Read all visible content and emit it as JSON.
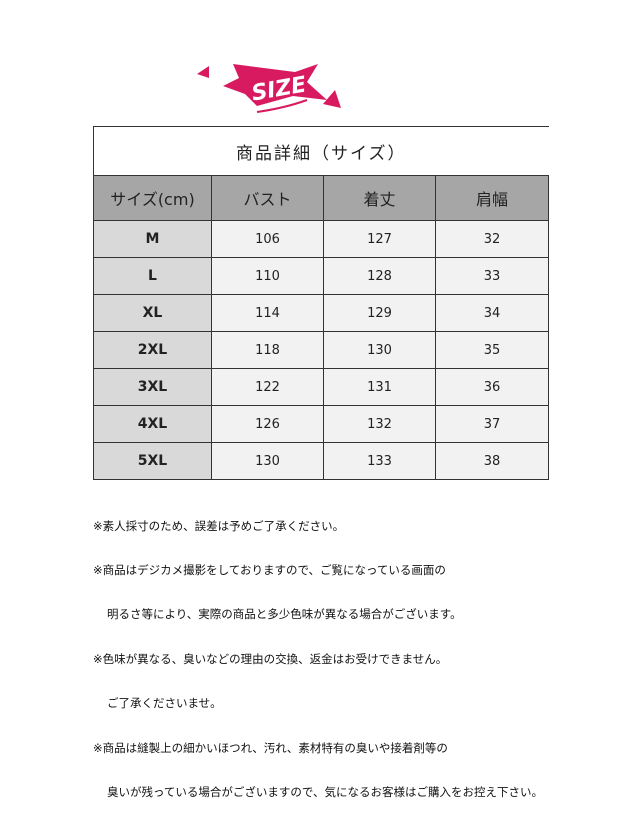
{
  "logo": {
    "text": "SIZE",
    "color": "#d81b60"
  },
  "table": {
    "title": "商品詳細（サイズ）",
    "headers": [
      "サイズ(cm)",
      "バスト",
      "着丈",
      "肩幅"
    ],
    "rows": [
      [
        "M",
        "106",
        "127",
        "32"
      ],
      [
        "L",
        "110",
        "128",
        "33"
      ],
      [
        "XL",
        "114",
        "129",
        "34"
      ],
      [
        "2XL",
        "118",
        "130",
        "35"
      ],
      [
        "3XL",
        "122",
        "131",
        "36"
      ],
      [
        "4XL",
        "126",
        "132",
        "37"
      ],
      [
        "5XL",
        "130",
        "133",
        "38"
      ]
    ]
  },
  "notes": [
    "※素人採寸のため、誤差は予めご了承ください。",
    "※商品はデジカメ撮影をしておりますので、ご覧になっている画面の",
    "明るさ等により、実際の商品と多少色味が異なる場合がございます。",
    "※色味が異なる、臭いなどの理由の交換、返金はお受けできません。",
    "ご了承くださいませ。",
    "※商品は縫製上の細かいほつれ、汚れ、素材特有の臭いや接着剤等の",
    "臭いが残っている場合がございますので、気になるお客様はご購入をお控え下さい。"
  ]
}
